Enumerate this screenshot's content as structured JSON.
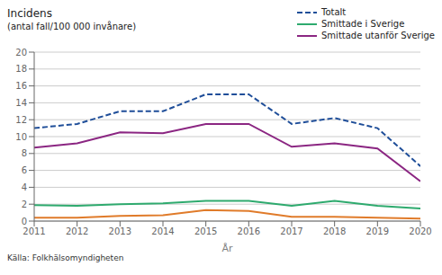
{
  "chart_data": {
    "type": "line",
    "title": "Incidens",
    "subtitle": "(antal fall/100 000 invånare)",
    "x_label": "År",
    "annotations": [
      "Källa: Folkhälsomyndigheten"
    ],
    "x": [
      2011,
      2012,
      2013,
      2014,
      2015,
      2016,
      2017,
      2018,
      2019,
      2020
    ],
    "series": [
      {
        "name": "Totalt",
        "color": "#1f4e99",
        "line_style": "dashed",
        "values": [
          11.0,
          11.5,
          13.0,
          13.0,
          15.0,
          15.0,
          11.5,
          12.2,
          11.0,
          6.5
        ]
      },
      {
        "name": "Smittade i Sverige",
        "color": "#2eaa6e",
        "line_style": "solid",
        "values": [
          1.9,
          1.8,
          2.0,
          2.1,
          2.4,
          2.4,
          1.8,
          2.4,
          1.8,
          1.5
        ]
      },
      {
        "name": "Smittade utanför Sverige",
        "color": "#8b2682",
        "line_style": "solid",
        "values": [
          8.7,
          9.2,
          10.5,
          10.4,
          11.5,
          11.5,
          8.8,
          9.2,
          8.6,
          4.7
        ]
      },
      {
        "color": "#e07b2a",
        "line_style": "solid",
        "values": [
          0.4,
          0.4,
          0.6,
          0.7,
          1.3,
          1.2,
          0.5,
          0.5,
          0.4,
          0.3
        ]
      }
    ],
    "xlim": [
      2011,
      2020
    ],
    "xticks": [
      2011,
      2012,
      2013,
      2014,
      2015,
      2016,
      2017,
      2018,
      2019,
      2020
    ],
    "ylim": [
      0,
      20
    ],
    "yticks": [
      0,
      2,
      4,
      6,
      8,
      10,
      12,
      14,
      16,
      18,
      20
    ],
    "grid": true,
    "legend": "upper right"
  }
}
